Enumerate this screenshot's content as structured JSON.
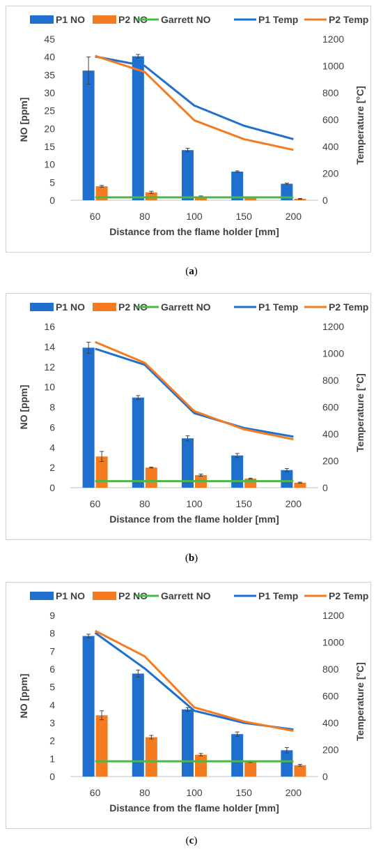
{
  "chart_data": [
    {
      "type": "bar",
      "panel_label": "a",
      "categories": [
        "60",
        "80",
        "100",
        "150",
        "200"
      ],
      "xlabel": "Distance from the flame holder [mm]",
      "ylabel": "NO [ppm]",
      "y2label": "Temperature [°C]",
      "ylim": [
        0,
        45
      ],
      "yticks": [
        0,
        5,
        10,
        15,
        20,
        25,
        30,
        35,
        40,
        45
      ],
      "y2lim": [
        0,
        1200
      ],
      "y2ticks": [
        0,
        200,
        400,
        600,
        800,
        1000,
        1200
      ],
      "bar_series": [
        {
          "name": "P1 NO",
          "color": "#1f6fcf",
          "values": [
            36.2,
            40.2,
            14.0,
            8.0,
            4.6
          ],
          "errors": [
            3.8,
            0.5,
            0.5,
            0.2,
            0.2
          ]
        },
        {
          "name": "P2 NO",
          "color": "#f47b20",
          "values": [
            3.9,
            2.2,
            1.0,
            0.7,
            0.4
          ],
          "errors": [
            0.25,
            0.3,
            0.2,
            0.1,
            0.1
          ]
        }
      ],
      "line_series": [
        {
          "name": "Garrett NO",
          "color": "#4cb848",
          "axis": "left",
          "values": [
            0.8,
            0.8,
            0.8,
            0.8,
            0.8
          ]
        },
        {
          "name": "P1 Temp",
          "color": "#1f6fcf",
          "axis": "right",
          "values": [
            1070,
            1000,
            705,
            555,
            455
          ]
        },
        {
          "name": "P2 Temp",
          "color": "#f47b20",
          "axis": "right",
          "values": [
            1075,
            955,
            595,
            455,
            375
          ]
        }
      ],
      "legend_position": "top",
      "grid": false
    },
    {
      "type": "bar",
      "panel_label": "b",
      "categories": [
        "60",
        "80",
        "100",
        "150",
        "200"
      ],
      "xlabel": "Distance from the flame holder [mm]",
      "ylabel": "NO [ppm]",
      "y2label": "Temperature [°C]",
      "ylim": [
        0,
        16
      ],
      "yticks": [
        0,
        2,
        4,
        6,
        8,
        10,
        12,
        14,
        16
      ],
      "y2lim": [
        0,
        1200
      ],
      "y2ticks": [
        0,
        200,
        400,
        600,
        800,
        1000,
        1200
      ],
      "bar_series": [
        {
          "name": "P1 NO",
          "color": "#1f6fcf",
          "values": [
            13.9,
            8.95,
            4.9,
            3.2,
            1.75
          ],
          "errors": [
            0.55,
            0.2,
            0.25,
            0.2,
            0.15
          ]
        },
        {
          "name": "P2 NO",
          "color": "#f47b20",
          "values": [
            3.1,
            2.0,
            1.25,
            0.9,
            0.5
          ],
          "errors": [
            0.5,
            0.05,
            0.1,
            0.05,
            0.05
          ]
        }
      ],
      "line_series": [
        {
          "name": "Garrett NO",
          "color": "#4cb848",
          "axis": "left",
          "values": [
            0.65,
            0.65,
            0.65,
            0.65,
            0.65
          ]
        },
        {
          "name": "P1 Temp",
          "color": "#1f6fcf",
          "axis": "right",
          "values": [
            1035,
            915,
            555,
            445,
            380
          ]
        },
        {
          "name": "P2 Temp",
          "color": "#f47b20",
          "axis": "right",
          "values": [
            1085,
            930,
            570,
            435,
            360
          ]
        }
      ],
      "legend_position": "top",
      "grid": false
    },
    {
      "type": "bar",
      "panel_label": "c",
      "categories": [
        "60",
        "80",
        "100",
        "150",
        "200"
      ],
      "xlabel": "Distance from the flame holder [mm]",
      "ylabel": "NO [ppm]",
      "y2label": "Temperature [°C]",
      "ylim": [
        0,
        9
      ],
      "yticks": [
        0,
        1,
        2,
        3,
        4,
        5,
        6,
        7,
        8,
        9
      ],
      "y2lim": [
        0,
        1200
      ],
      "y2ticks": [
        0,
        200,
        400,
        600,
        800,
        1000,
        1200
      ],
      "bar_series": [
        {
          "name": "P1 NO",
          "color": "#1f6fcf",
          "values": [
            7.85,
            5.75,
            3.75,
            2.37,
            1.47
          ],
          "errors": [
            0.1,
            0.2,
            0.1,
            0.12,
            0.15
          ]
        },
        {
          "name": "P2 NO",
          "color": "#f47b20",
          "values": [
            3.42,
            2.2,
            1.22,
            0.83,
            0.63
          ],
          "errors": [
            0.25,
            0.1,
            0.07,
            0.05,
            0.05
          ]
        }
      ],
      "line_series": [
        {
          "name": "Garrett NO",
          "color": "#4cb848",
          "axis": "left",
          "values": [
            0.85,
            0.85,
            0.85,
            0.85,
            0.85
          ]
        },
        {
          "name": "P1 Temp",
          "color": "#1f6fcf",
          "axis": "right",
          "values": [
            1070,
            805,
            490,
            400,
            350
          ]
        },
        {
          "name": "P2 Temp",
          "color": "#f47b20",
          "axis": "right",
          "values": [
            1085,
            895,
            515,
            410,
            340
          ]
        }
      ],
      "legend_position": "top",
      "grid": false
    }
  ],
  "captions": [
    "a",
    "b",
    "c"
  ]
}
